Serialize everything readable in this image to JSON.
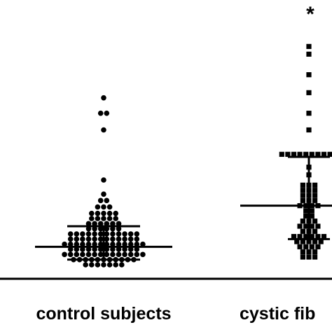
{
  "chart_data": {
    "type": "scatter",
    "title": "",
    "xlabel": "",
    "ylabel": "",
    "categories": [
      "control subjects",
      "cystic fib"
    ],
    "ylim": [
      0,
      18
    ],
    "grid": false,
    "legend": "none",
    "annotation": "*",
    "series": [
      {
        "category": "control subjects",
        "marker": "circle",
        "median": 1.4,
        "q1": 0.4,
        "q3": 3.0,
        "values": [
          13.0,
          11.8,
          11.8,
          10.5,
          6.6,
          5.5,
          5.0,
          5.0,
          4.5,
          4.5,
          4.5,
          4.0,
          4.0,
          4.0,
          4.0,
          4.0,
          3.6,
          3.6,
          3.6,
          3.6,
          3.6,
          3.2,
          3.2,
          3.2,
          3.2,
          3.2,
          3.2,
          2.8,
          2.8,
          2.8,
          2.8,
          2.8,
          2.8,
          2.4,
          2.4,
          2.4,
          2.4,
          2.4,
          2.4,
          2.4,
          2.4,
          2.4,
          2.4,
          2.4,
          2.4,
          2.0,
          2.0,
          2.0,
          2.0,
          2.0,
          2.0,
          2.0,
          2.0,
          2.0,
          2.0,
          2.0,
          2.0,
          1.6,
          1.6,
          1.6,
          1.6,
          1.6,
          1.6,
          1.6,
          1.6,
          1.6,
          1.6,
          1.6,
          1.6,
          1.6,
          1.6,
          1.2,
          1.2,
          1.2,
          1.2,
          1.2,
          1.2,
          1.2,
          1.2,
          1.2,
          1.2,
          1.2,
          1.2,
          0.8,
          0.8,
          0.8,
          0.8,
          0.8,
          0.8,
          0.8,
          0.8,
          0.8,
          0.8,
          0.8,
          0.8,
          0.8,
          0.8,
          0.4,
          0.4,
          0.4,
          0.4,
          0.4,
          0.4,
          0.4,
          0.4,
          0.4,
          0.4,
          0.4,
          0.0,
          0.0,
          0.0,
          0.0,
          0.0,
          0.0,
          0.0
        ]
      },
      {
        "category": "cystic fib",
        "marker": "square",
        "median": 4.6,
        "q1": 2.0,
        "q3": 8.4,
        "values": [
          17.0,
          16.4,
          14.8,
          13.4,
          11.8,
          10.5,
          8.6,
          8.6,
          8.6,
          8.6,
          8.6,
          8.6,
          8.6,
          8.6,
          8.6,
          8.6,
          7.6,
          7.0,
          6.2,
          6.2,
          6.2,
          5.8,
          5.8,
          5.8,
          5.4,
          5.4,
          5.4,
          5.0,
          5.0,
          5.0,
          4.6,
          4.6,
          4.6,
          4.6,
          4.2,
          4.2,
          3.8,
          3.8,
          3.4,
          3.4,
          3.4,
          3.0,
          3.0,
          3.0,
          3.0,
          2.6,
          2.6,
          2.6,
          2.2,
          2.2,
          2.2,
          2.2,
          2.2,
          2.2,
          1.8,
          1.8,
          1.8,
          1.8,
          1.8,
          1.4,
          1.4,
          1.4,
          1.4,
          1.0,
          1.0,
          1.0,
          0.6,
          0.6,
          0.6
        ]
      }
    ]
  }
}
